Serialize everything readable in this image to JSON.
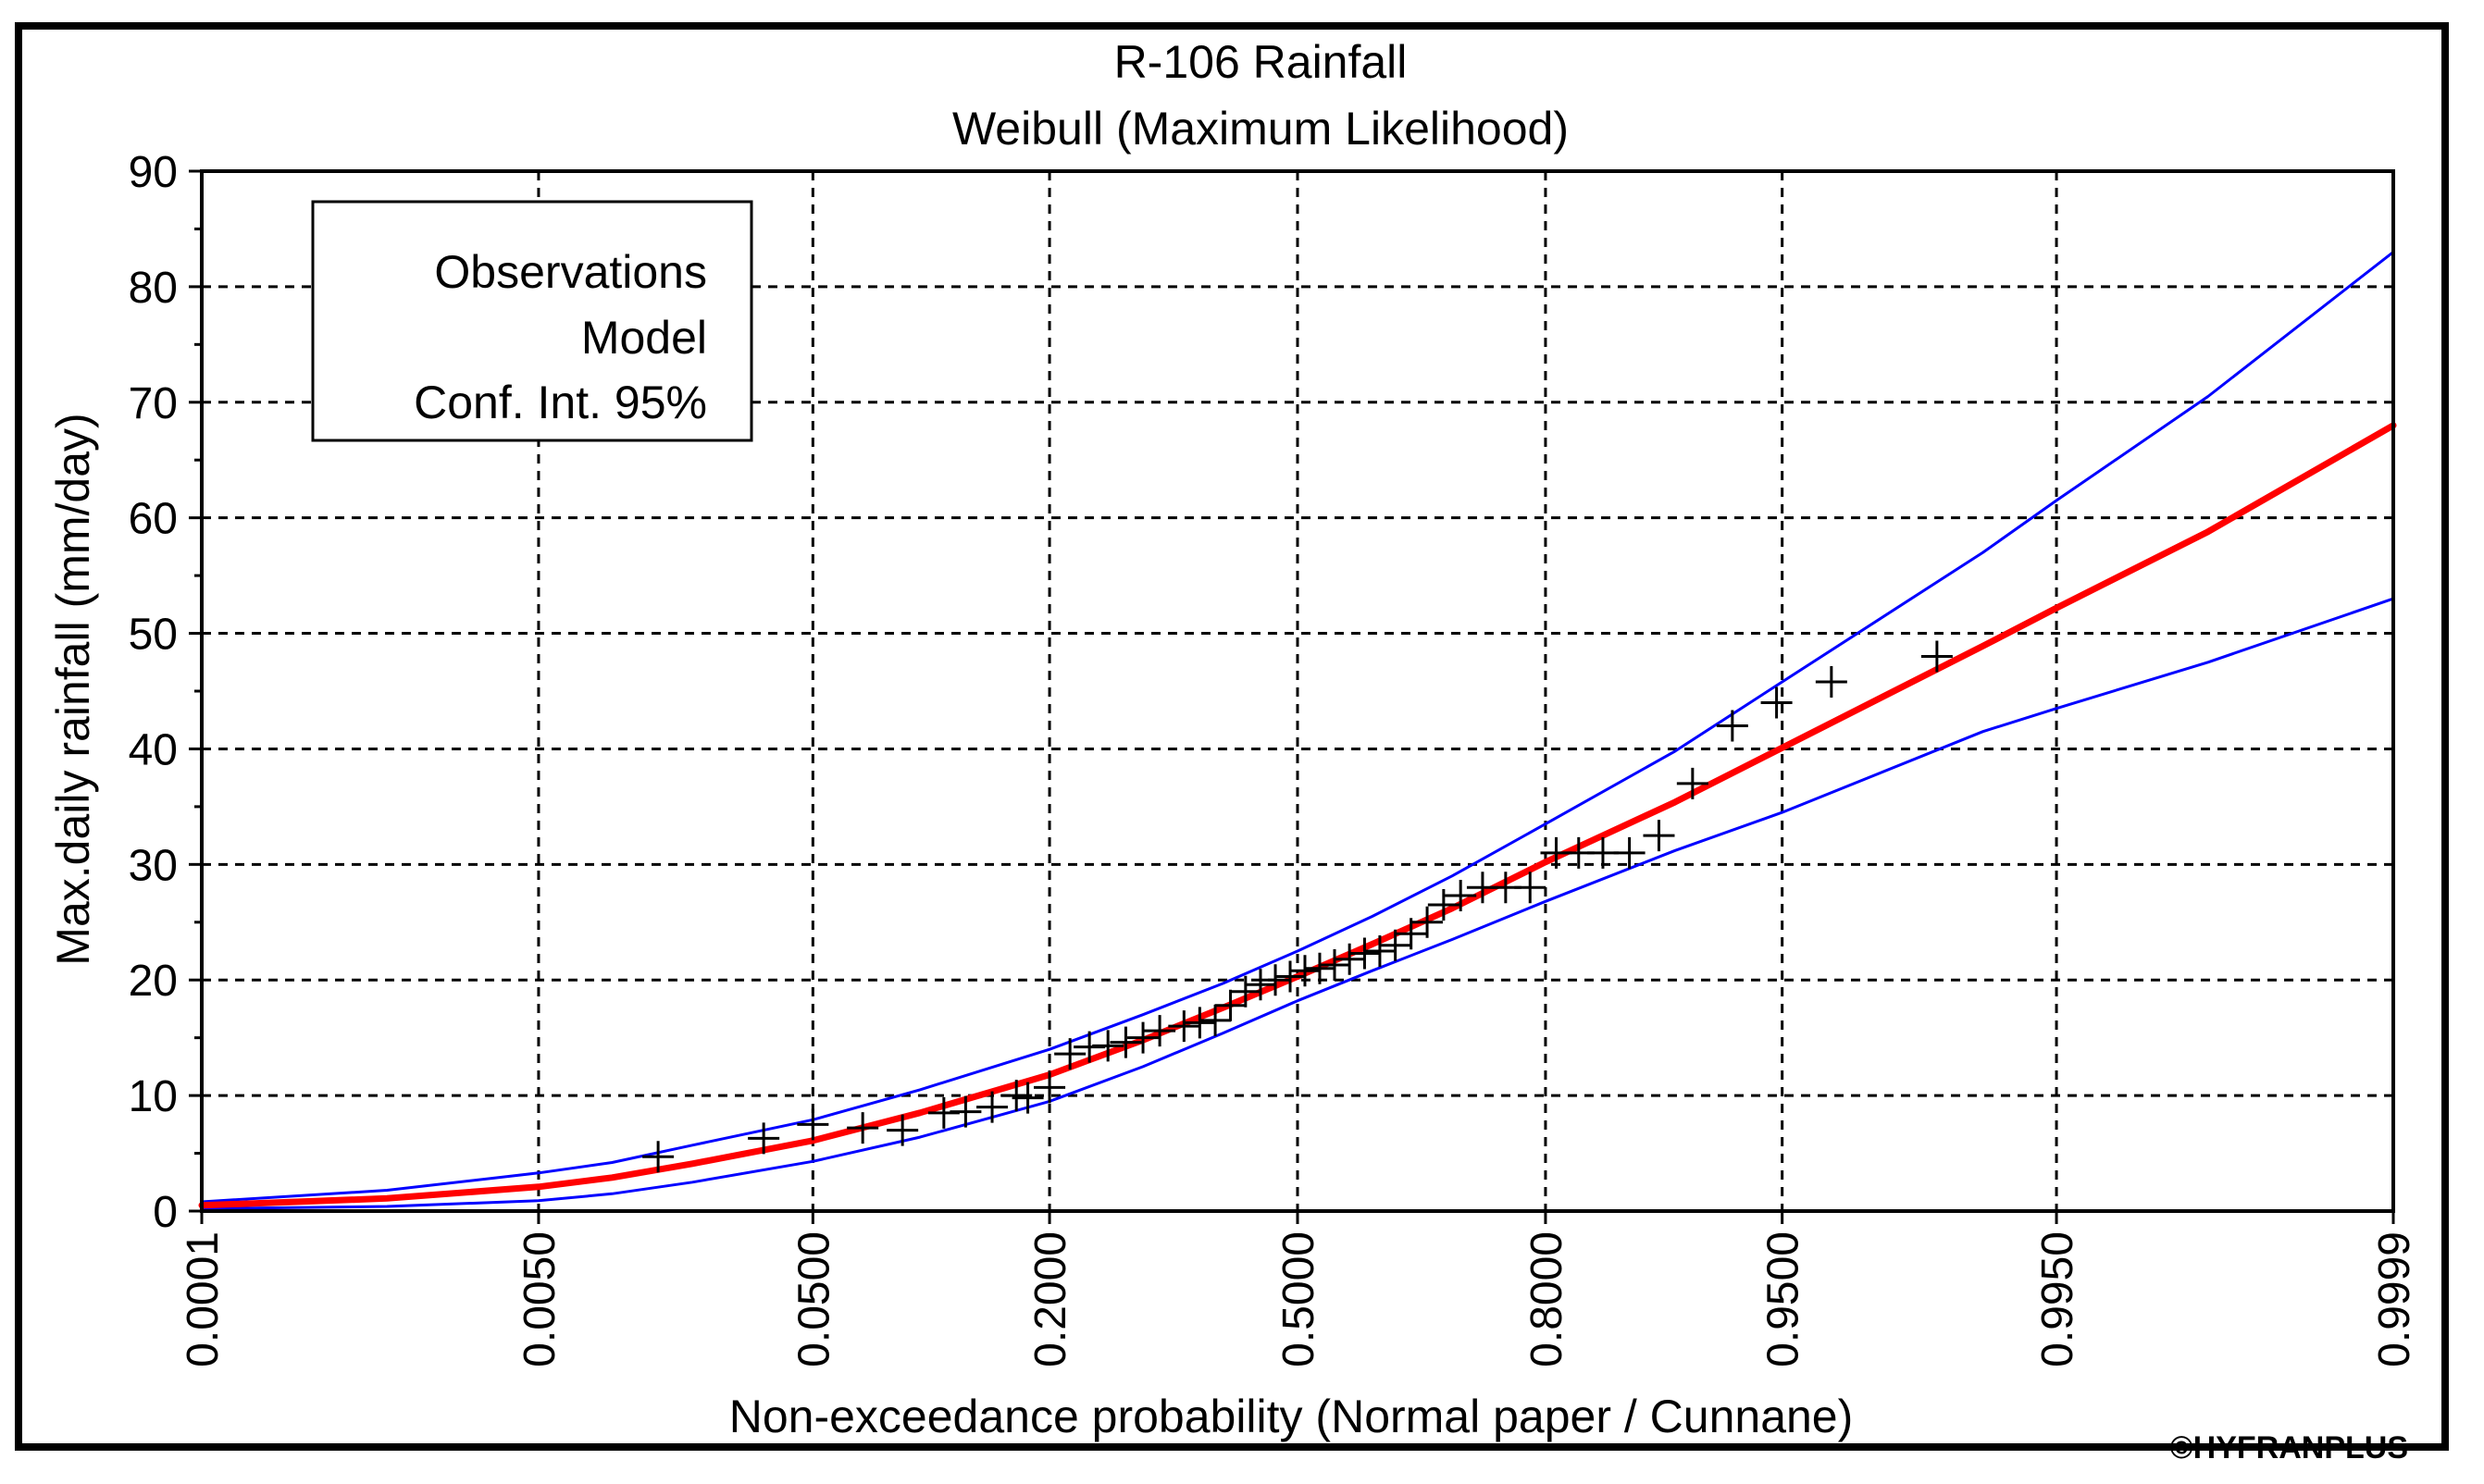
{
  "chart_data": {
    "type": "scatter",
    "title": "R-106 Rainfall",
    "subtitle": "Weibull (Maximum Likelihood)",
    "xlabel": "Non-exceedance probability (Normal paper / Cunnane)",
    "ylabel": "Max.daily rainfall (mm/day)",
    "x_scale": "normal-probability",
    "xlim": [
      0.0001,
      0.9999
    ],
    "ylim": [
      0,
      90
    ],
    "grid": true,
    "x_ticks": [
      {
        "label": "0.0001",
        "p": 0.0001
      },
      {
        "label": "0.0050",
        "p": 0.005
      },
      {
        "label": "0.0500",
        "p": 0.05
      },
      {
        "label": "0.2000",
        "p": 0.2
      },
      {
        "label": "0.5000",
        "p": 0.5
      },
      {
        "label": "0.8000",
        "p": 0.8
      },
      {
        "label": "0.9500",
        "p": 0.95
      },
      {
        "label": "0.9950",
        "p": 0.995
      },
      {
        "label": "0.9999",
        "p": 0.9999
      }
    ],
    "y_ticks": [
      "0",
      "10",
      "20",
      "30",
      "40",
      "50",
      "60",
      "70",
      "80",
      "90"
    ],
    "legend": {
      "position": "top-left",
      "entries": [
        "Observations",
        "Model",
        "Conf. Int. 95%"
      ]
    },
    "watermark": "©HYFRANPLUS",
    "colors": {
      "observations": "#000000",
      "model": "#ff0000",
      "conf_int": "#0000ff"
    },
    "series": [
      {
        "name": "Observations",
        "marker": "plus",
        "points": [
          [
            0.015,
            4.7
          ],
          [
            0.035,
            6.3
          ],
          [
            0.05,
            7.5
          ],
          [
            0.07,
            7.2
          ],
          [
            0.09,
            7.0
          ],
          [
            0.115,
            8.5
          ],
          [
            0.13,
            8.6
          ],
          [
            0.15,
            9.0
          ],
          [
            0.17,
            10.0
          ],
          [
            0.18,
            9.8
          ],
          [
            0.2,
            10.7
          ],
          [
            0.22,
            13.6
          ],
          [
            0.24,
            14.2
          ],
          [
            0.26,
            14.3
          ],
          [
            0.28,
            14.6
          ],
          [
            0.3,
            15.0
          ],
          [
            0.32,
            15.6
          ],
          [
            0.35,
            16.0
          ],
          [
            0.37,
            16.3
          ],
          [
            0.39,
            16.5
          ],
          [
            0.41,
            17.8
          ],
          [
            0.43,
            19.0
          ],
          [
            0.45,
            19.6
          ],
          [
            0.47,
            20.0
          ],
          [
            0.49,
            20.3
          ],
          [
            0.51,
            20.8
          ],
          [
            0.53,
            21.0
          ],
          [
            0.55,
            21.3
          ],
          [
            0.57,
            21.8
          ],
          [
            0.59,
            22.3
          ],
          [
            0.61,
            22.5
          ],
          [
            0.63,
            23.0
          ],
          [
            0.65,
            24.0
          ],
          [
            0.67,
            25.0
          ],
          [
            0.69,
            26.5
          ],
          [
            0.71,
            27.3
          ],
          [
            0.735,
            28.0
          ],
          [
            0.76,
            28.0
          ],
          [
            0.785,
            28.0
          ],
          [
            0.81,
            31.0
          ],
          [
            0.83,
            31.0
          ],
          [
            0.85,
            31.0
          ],
          [
            0.87,
            31.0
          ],
          [
            0.89,
            32.5
          ],
          [
            0.91,
            37.0
          ],
          [
            0.93,
            42.0
          ],
          [
            0.948,
            44.0
          ],
          [
            0.965,
            45.8
          ],
          [
            0.985,
            48.0
          ]
        ]
      },
      {
        "name": "Model",
        "points": [
          [
            0.0001,
            0.5
          ],
          [
            0.001,
            1.1
          ],
          [
            0.005,
            2.1
          ],
          [
            0.01,
            2.9
          ],
          [
            0.02,
            4.1
          ],
          [
            0.05,
            6.1
          ],
          [
            0.1,
            8.5
          ],
          [
            0.2,
            11.8
          ],
          [
            0.3,
            14.8
          ],
          [
            0.4,
            17.6
          ],
          [
            0.5,
            20.3
          ],
          [
            0.6,
            23.1
          ],
          [
            0.7,
            26.2
          ],
          [
            0.8,
            30.2
          ],
          [
            0.9,
            35.4
          ],
          [
            0.95,
            40.1
          ],
          [
            0.99,
            48.9
          ],
          [
            0.995,
            52.2
          ],
          [
            0.999,
            58.8
          ],
          [
            0.9999,
            68.0
          ]
        ]
      },
      {
        "name": "Conf. Int. 95% (upper)",
        "points": [
          [
            0.0001,
            0.8
          ],
          [
            0.001,
            1.8
          ],
          [
            0.005,
            3.3
          ],
          [
            0.01,
            4.2
          ],
          [
            0.02,
            5.7
          ],
          [
            0.05,
            7.9
          ],
          [
            0.1,
            10.5
          ],
          [
            0.2,
            14.0
          ],
          [
            0.3,
            17.0
          ],
          [
            0.4,
            19.7
          ],
          [
            0.5,
            22.5
          ],
          [
            0.6,
            25.5
          ],
          [
            0.7,
            29.0
          ],
          [
            0.8,
            33.5
          ],
          [
            0.9,
            39.8
          ],
          [
            0.95,
            45.8
          ],
          [
            0.99,
            57.0
          ],
          [
            0.995,
            61.5
          ],
          [
            0.999,
            70.5
          ],
          [
            0.9999,
            83.0
          ]
        ]
      },
      {
        "name": "Conf. Int. 95% (lower)",
        "points": [
          [
            0.0001,
            0.2
          ],
          [
            0.001,
            0.4
          ],
          [
            0.005,
            0.9
          ],
          [
            0.01,
            1.5
          ],
          [
            0.02,
            2.5
          ],
          [
            0.05,
            4.3
          ],
          [
            0.1,
            6.4
          ],
          [
            0.2,
            9.5
          ],
          [
            0.3,
            12.5
          ],
          [
            0.4,
            15.4
          ],
          [
            0.5,
            18.2
          ],
          [
            0.6,
            20.8
          ],
          [
            0.7,
            23.5
          ],
          [
            0.8,
            26.8
          ],
          [
            0.9,
            31.2
          ],
          [
            0.95,
            34.5
          ],
          [
            0.99,
            41.5
          ],
          [
            0.995,
            43.5
          ],
          [
            0.999,
            47.5
          ],
          [
            0.9999,
            53.0
          ]
        ]
      }
    ]
  }
}
